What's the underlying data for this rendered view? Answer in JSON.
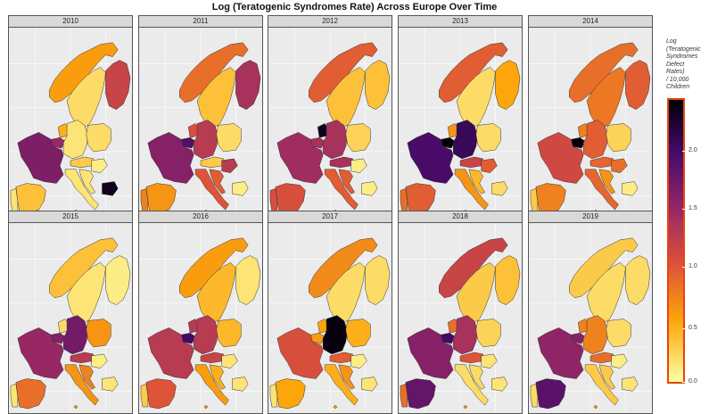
{
  "title": "Log (Teratogenic Syndromes Rate) Across Europe Over Time",
  "legend": {
    "title_lines": [
      "Log",
      "(Teratogenic",
      "Syndromes",
      "Defect",
      "Rates)",
      "/ 10,000",
      "Children"
    ],
    "ticks": [
      "0.0",
      "0.5",
      "1.0",
      "1.5",
      "2.0"
    ],
    "range": [
      0,
      2.3
    ],
    "palette": "inferno"
  },
  "panels": [
    {
      "year": "2010"
    },
    {
      "year": "2011"
    },
    {
      "year": "2012"
    },
    {
      "year": "2013"
    },
    {
      "year": "2014"
    },
    {
      "year": "2015"
    },
    {
      "year": "2016"
    },
    {
      "year": "2017"
    },
    {
      "year": "2018"
    },
    {
      "year": "2019"
    }
  ],
  "countries": [
    "Norway",
    "Sweden",
    "Finland",
    "Netherlands",
    "Belgium",
    "Germany",
    "Poland",
    "France",
    "Austria",
    "Hungary",
    "Croatia",
    "Italy",
    "Spain",
    "Portugal",
    "Bulgaria",
    "Malta"
  ],
  "values": {
    "2010": {
      "Norway": 0.55,
      "Sweden": 0.2,
      "Finland": 1.1,
      "Netherlands": 0.45,
      "Belgium": 1.4,
      "Germany": 0.15,
      "Poland": 0.2,
      "France": 1.55,
      "Austria": 0.3,
      "Hungary": 0.1,
      "Croatia": 0.15,
      "Italy": 0.15,
      "Spain": 0.35,
      "Portugal": 0.15,
      "Bulgaria": 2.2,
      "Malta": 0.6
    },
    "2011": {
      "Norway": 0.8,
      "Sweden": 0.35,
      "Finland": 1.3,
      "Netherlands": 1.0,
      "Belgium": 1.8,
      "Germany": 1.2,
      "Poland": 0.2,
      "France": 1.5,
      "Austria": 0.3,
      "Hungary": 1.2,
      "Croatia": 0.9,
      "Italy": 0.95,
      "Spain": 0.6,
      "Portugal": 0.7,
      "Bulgaria": 0.1,
      "Malta": 0.6
    },
    "2012": {
      "Norway": 0.9,
      "Sweden": 0.35,
      "Finland": 0.35,
      "Netherlands": 2.2,
      "Belgium": 1.3,
      "Germany": 1.3,
      "Poland": 0.25,
      "France": 1.35,
      "Austria": 1.3,
      "Hungary": 0.1,
      "Croatia": 0.9,
      "Italy": 0.9,
      "Spain": 1.0,
      "Portugal": 1.0,
      "Bulgaria": 0.1,
      "Malta": 0.6
    },
    "2013": {
      "Norway": 0.9,
      "Sweden": 0.2,
      "Finland": 0.5,
      "Netherlands": 0.6,
      "Belgium": 2.3,
      "Germany": 1.95,
      "Poland": 0.2,
      "France": 1.85,
      "Austria": 1.1,
      "Hungary": 0.9,
      "Croatia": 0.4,
      "Italy": 0.6,
      "Spain": 0.9,
      "Portugal": 0.8,
      "Bulgaria": 0.2,
      "Malta": 0.6
    },
    "2014": {
      "Norway": 0.8,
      "Sweden": 0.75,
      "Finland": 0.9,
      "Netherlands": 0.7,
      "Belgium": 2.3,
      "Germany": 0.9,
      "Poland": 0.25,
      "France": 1.05,
      "Austria": 0.85,
      "Hungary": 0.8,
      "Croatia": 0.6,
      "Italy": 0.85,
      "Spain": 0.7,
      "Portugal": 0.3,
      "Bulgaria": 0.1,
      "Malta": 0.6
    },
    "2015": {
      "Norway": 0.35,
      "Sweden": 0.15,
      "Finland": 0.1,
      "Netherlands": 0.2,
      "Belgium": 1.5,
      "Germany": 1.6,
      "Poland": 0.6,
      "France": 1.4,
      "Austria": 1.2,
      "Hungary": 0.1,
      "Croatia": 0.7,
      "Italy": 0.6,
      "Spain": 0.8,
      "Portugal": 0.15,
      "Bulgaria": 0.15,
      "Malta": 0.6
    },
    "2016": {
      "Norway": 0.55,
      "Sweden": 0.4,
      "Finland": 0.15,
      "Netherlands": 1.2,
      "Belgium": 1.9,
      "Germany": 1.2,
      "Poland": 0.4,
      "France": 1.2,
      "Austria": 1.1,
      "Hungary": 0.15,
      "Croatia": 0.45,
      "Italy": 0.55,
      "Spain": 0.95,
      "Portugal": 0.3,
      "Bulgaria": 0.15,
      "Malta": 0.6
    },
    "2017": {
      "Norway": 0.65,
      "Sweden": 0.2,
      "Finland": 0.2,
      "Netherlands": 0.5,
      "Belgium": 0.55,
      "Germany": 2.25,
      "Poland": 0.45,
      "France": 1.0,
      "Austria": 0.9,
      "Hungary": 0.1,
      "Croatia": 0.6,
      "Italy": 0.45,
      "Spain": 0.5,
      "Portugal": 0.15,
      "Bulgaria": 0.15,
      "Malta": 0.6
    },
    "2018": {
      "Norway": 1.1,
      "Sweden": 0.3,
      "Finland": 0.35,
      "Netherlands": 0.8,
      "Belgium": 1.9,
      "Germany": 1.3,
      "Poland": 0.25,
      "France": 1.5,
      "Austria": 0.95,
      "Hungary": 0.15,
      "Croatia": 0.2,
      "Italy": 0.2,
      "Spain": 1.7,
      "Portugal": 0.8,
      "Bulgaria": 0.15,
      "Malta": 0.6
    },
    "2019": {
      "Norway": 0.3,
      "Sweden": 0.2,
      "Finland": 0.2,
      "Netherlands": 0.7,
      "Belgium": 1.5,
      "Germany": 0.7,
      "Poland": 0.2,
      "France": 1.45,
      "Austria": 0.8,
      "Hungary": 0.1,
      "Croatia": 0.3,
      "Italy": 0.3,
      "Spain": 1.75,
      "Portugal": 0.2,
      "Bulgaria": 0.15,
      "Malta": 0.6
    }
  }
}
